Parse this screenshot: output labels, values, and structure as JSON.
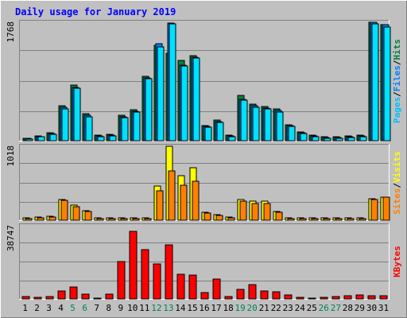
{
  "chart_data": [
    {
      "type": "bar",
      "title": "Daily usage for January 2019",
      "ymax_label": "1768",
      "ylim": [
        0,
        1768
      ],
      "grid": true,
      "legend_parts": [
        "Pages",
        "/",
        "Files",
        "/",
        "Hits"
      ],
      "categories": [
        "1",
        "2",
        "3",
        "4",
        "5",
        "6",
        "7",
        "8",
        "9",
        "10",
        "11",
        "12",
        "13",
        "14",
        "15",
        "16",
        "17",
        "18",
        "19",
        "20",
        "21",
        "22",
        "23",
        "24",
        "25",
        "26",
        "27",
        "28",
        "29",
        "30",
        "31"
      ],
      "weekend_days": [
        "5",
        "6",
        "12",
        "13",
        "19",
        "20",
        "26",
        "27"
      ],
      "series": [
        {
          "name": "Hits",
          "color": "#008040",
          "values": [
            38,
            70,
            120,
            520,
            830,
            400,
            80,
            90,
            380,
            460,
            960,
            1420,
            1300,
            1200,
            1270,
            230,
            310,
            80,
            680,
            540,
            510,
            480,
            240,
            130,
            80,
            60,
            60,
            70,
            80,
            1768,
            1730
          ]
        },
        {
          "name": "Files",
          "color": "#0080ff",
          "values": [
            30,
            60,
            110,
            500,
            800,
            380,
            70,
            80,
            360,
            440,
            940,
            1450,
            1760,
            1130,
            1250,
            210,
            290,
            70,
            620,
            520,
            490,
            450,
            220,
            120,
            70,
            50,
            50,
            60,
            70,
            1768,
            1730
          ]
        },
        {
          "name": "Pages",
          "color": "#00e0ff",
          "values": [
            25,
            55,
            100,
            480,
            780,
            360,
            60,
            70,
            350,
            430,
            920,
            1400,
            1740,
            1110,
            1230,
            200,
            270,
            60,
            600,
            500,
            470,
            430,
            210,
            110,
            60,
            40,
            40,
            50,
            60,
            1740,
            1700
          ]
        }
      ]
    },
    {
      "type": "bar",
      "ymax_label": "1018",
      "ylim": [
        0,
        1018
      ],
      "grid": true,
      "legend_parts": [
        "Sites",
        "/",
        "Visits"
      ],
      "categories": [
        "1",
        "2",
        "3",
        "4",
        "5",
        "6",
        "7",
        "8",
        "9",
        "10",
        "11",
        "12",
        "13",
        "14",
        "15",
        "16",
        "17",
        "18",
        "19",
        "20",
        "21",
        "22",
        "23",
        "24",
        "25",
        "26",
        "27",
        "28",
        "29",
        "30",
        "31"
      ],
      "series": [
        {
          "name": "Visits",
          "color": "#ffff00",
          "values": [
            30,
            40,
            50,
            290,
            210,
            130,
            30,
            30,
            30,
            30,
            30,
            470,
            1018,
            610,
            720,
            110,
            80,
            40,
            290,
            260,
            260,
            120,
            30,
            30,
            30,
            30,
            30,
            30,
            30,
            300,
            320
          ]
        },
        {
          "name": "Sites",
          "color": "#ff8000",
          "values": [
            25,
            30,
            40,
            270,
            190,
            120,
            25,
            25,
            25,
            25,
            25,
            400,
            680,
            480,
            540,
            100,
            70,
            30,
            260,
            230,
            230,
            110,
            25,
            25,
            25,
            25,
            25,
            25,
            25,
            290,
            320
          ]
        }
      ]
    },
    {
      "type": "bar",
      "ymax_label": "38747",
      "ylim": [
        0,
        38747
      ],
      "grid": true,
      "legend_parts": [
        "KBytes"
      ],
      "categories": [
        "1",
        "2",
        "3",
        "4",
        "5",
        "6",
        "7",
        "8",
        "9",
        "10",
        "11",
        "12",
        "13",
        "14",
        "15",
        "16",
        "17",
        "18",
        "19",
        "20",
        "21",
        "22",
        "23",
        "24",
        "25",
        "26",
        "27",
        "28",
        "29",
        "30",
        "31"
      ],
      "series": [
        {
          "name": "KBytes",
          "color": "#ff0000",
          "values": [
            1200,
            900,
            1300,
            4200,
            6200,
            2500,
            600,
            2600,
            20000,
            36000,
            26000,
            18500,
            28500,
            13000,
            12500,
            3500,
            10500,
            1200,
            5000,
            7500,
            4200,
            3800,
            2000,
            800,
            600,
            800,
            1200,
            1800,
            2000,
            1700,
            1800
          ]
        }
      ]
    }
  ],
  "colors": {
    "panel_bg": "#c0c0c0",
    "plot_bg": "#c0c0c0",
    "grid": "#808080",
    "title": "#0000ff",
    "weekday_label": "#000000",
    "weekend_label": "#00805c",
    "hits_label": "#008040",
    "files_label": "#0080ff",
    "pages_label": "#00c0ff",
    "visits_label": "#ffff00",
    "sites_label": "#ff8000",
    "kbytes_label": "#ff0000"
  }
}
